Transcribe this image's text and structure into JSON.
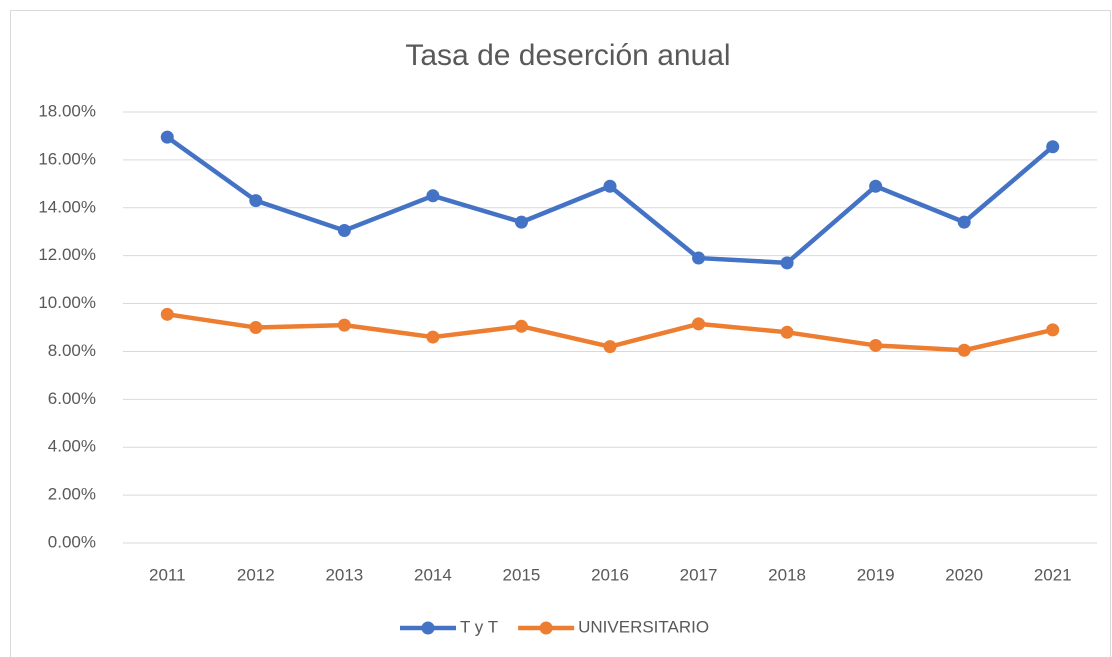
{
  "chart_data": {
    "type": "line",
    "title": "Tasa de deserción anual",
    "categories": [
      "2011",
      "2012",
      "2013",
      "2014",
      "2015",
      "2016",
      "2017",
      "2018",
      "2019",
      "2020",
      "2021"
    ],
    "series": [
      {
        "name": "T y T",
        "color": "#4472c4",
        "values": [
          16.95,
          14.3,
          13.05,
          14.5,
          13.4,
          14.9,
          11.9,
          11.7,
          14.9,
          13.4,
          16.55
        ]
      },
      {
        "name": "UNIVERSITARIO",
        "color": "#ed7d31",
        "values": [
          9.55,
          9.0,
          9.1,
          8.6,
          9.05,
          8.2,
          9.15,
          8.8,
          8.25,
          8.05,
          8.9
        ]
      }
    ],
    "ylim": [
      0,
      18
    ],
    "yticks": [
      {
        "value": 0,
        "label": "0.00%"
      },
      {
        "value": 2,
        "label": "2.00%"
      },
      {
        "value": 4,
        "label": "4.00%"
      },
      {
        "value": 6,
        "label": "6.00%"
      },
      {
        "value": 8,
        "label": "8.00%"
      },
      {
        "value": 10,
        "label": "10.00%"
      },
      {
        "value": 12,
        "label": "12.00%"
      },
      {
        "value": 14,
        "label": "14.00%"
      },
      {
        "value": 16,
        "label": "16.00%"
      },
      {
        "value": 18,
        "label": "18.00%"
      }
    ],
    "grid": true,
    "legend": "bottom"
  }
}
